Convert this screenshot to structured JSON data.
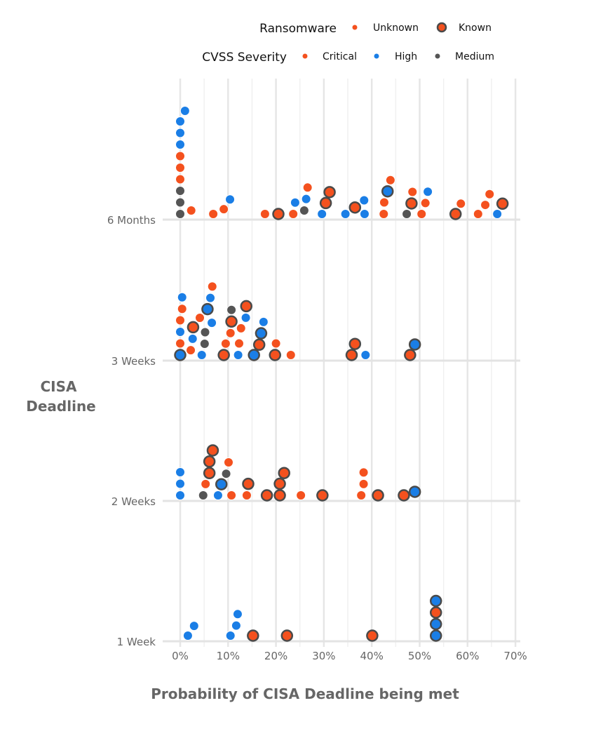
{
  "chart_data": {
    "type": "scatter",
    "subtype": "beeswarm",
    "xlabel": "Probability of CISA Deadline being met",
    "ylabel": "CISA Deadline",
    "xlim": [
      0,
      70
    ],
    "x_ticks": [
      "0%",
      "10%",
      "20%",
      "30%",
      "40%",
      "50%",
      "60%",
      "70%"
    ],
    "categories": [
      "1 Week",
      "2 Weeks",
      "3 Weeks",
      "6 Months"
    ],
    "grid": true,
    "legend": {
      "placement": "top",
      "ransomware": {
        "title": "Ransomware",
        "items": [
          "Unknown",
          "Known"
        ]
      },
      "severity": {
        "title": "CVSS Severity",
        "items": [
          "Critical",
          "High",
          "Medium"
        ]
      }
    },
    "colors": {
      "Critical": "#F4511E",
      "High": "#1A7EE6",
      "Medium": "#555555",
      "known_outline": "#4a4a4a"
    },
    "points": {
      "6 Months": [
        [
          0,
          "Medium",
          0
        ],
        [
          0,
          "Medium",
          0
        ],
        [
          0,
          "Medium",
          0
        ],
        [
          0,
          "Critical",
          0
        ],
        [
          0,
          "Critical",
          0
        ],
        [
          0,
          "Critical",
          0
        ],
        [
          0,
          "High",
          0
        ],
        [
          0,
          "High",
          0
        ],
        [
          0,
          "High",
          0
        ],
        [
          1.0,
          "High",
          0
        ],
        [
          2.3,
          "Critical",
          0
        ],
        [
          6.9,
          "Critical",
          0
        ],
        [
          9.1,
          "Critical",
          0
        ],
        [
          10.4,
          "High",
          0
        ],
        [
          17.7,
          "Critical",
          0
        ],
        [
          20.5,
          "Critical",
          1
        ],
        [
          23.6,
          "Critical",
          0
        ],
        [
          24.0,
          "High",
          0
        ],
        [
          25.9,
          "Medium",
          0
        ],
        [
          26.3,
          "High",
          0
        ],
        [
          26.6,
          "Critical",
          0
        ],
        [
          29.6,
          "High",
          0
        ],
        [
          30.4,
          "Critical",
          1
        ],
        [
          31.2,
          "Critical",
          1
        ],
        [
          34.5,
          "High",
          0
        ],
        [
          36.5,
          "Critical",
          1
        ],
        [
          38.4,
          "High",
          0
        ],
        [
          38.5,
          "High",
          0
        ],
        [
          42.5,
          "Critical",
          0
        ],
        [
          42.6,
          "Critical",
          0
        ],
        [
          43.3,
          "High",
          1
        ],
        [
          43.9,
          "Critical",
          0
        ],
        [
          47.3,
          "Medium",
          0
        ],
        [
          48.3,
          "Critical",
          1
        ],
        [
          48.5,
          "Critical",
          0
        ],
        [
          50.4,
          "Critical",
          0
        ],
        [
          51.2,
          "Critical",
          0
        ],
        [
          51.7,
          "High",
          0
        ],
        [
          57.5,
          "Critical",
          1
        ],
        [
          58.6,
          "Critical",
          0
        ],
        [
          62.2,
          "Critical",
          0
        ],
        [
          63.7,
          "Critical",
          0
        ],
        [
          64.6,
          "Critical",
          0
        ],
        [
          66.2,
          "High",
          0
        ],
        [
          67.3,
          "Critical",
          1
        ]
      ],
      "3 Weeks": [
        [
          0,
          "High",
          1
        ],
        [
          0,
          "Critical",
          0
        ],
        [
          0,
          "High",
          0
        ],
        [
          0,
          "Critical",
          0
        ],
        [
          0.4,
          "Critical",
          0
        ],
        [
          0.4,
          "High",
          0
        ],
        [
          2.2,
          "Critical",
          0
        ],
        [
          2.6,
          "High",
          0
        ],
        [
          2.7,
          "Critical",
          1
        ],
        [
          4.1,
          "Critical",
          0
        ],
        [
          4.5,
          "High",
          0
        ],
        [
          5.1,
          "Medium",
          0
        ],
        [
          5.2,
          "Medium",
          0
        ],
        [
          5.7,
          "High",
          1
        ],
        [
          6.3,
          "High",
          0
        ],
        [
          6.6,
          "High",
          0
        ],
        [
          6.7,
          "Critical",
          0
        ],
        [
          9.1,
          "Critical",
          1
        ],
        [
          9.5,
          "Critical",
          0
        ],
        [
          10.5,
          "Critical",
          0
        ],
        [
          10.7,
          "Critical",
          1
        ],
        [
          10.7,
          "Medium",
          0
        ],
        [
          12.1,
          "High",
          0
        ],
        [
          12.3,
          "Critical",
          0
        ],
        [
          12.7,
          "Critical",
          0
        ],
        [
          13.7,
          "High",
          0
        ],
        [
          13.8,
          "Critical",
          1
        ],
        [
          15.4,
          "High",
          1
        ],
        [
          16.5,
          "Critical",
          1
        ],
        [
          16.9,
          "High",
          1
        ],
        [
          17.4,
          "High",
          0
        ],
        [
          19.8,
          "Critical",
          1
        ],
        [
          20.0,
          "Critical",
          0
        ],
        [
          23.1,
          "Critical",
          0
        ],
        [
          35.8,
          "Critical",
          1
        ],
        [
          36.5,
          "Critical",
          1
        ],
        [
          38.7,
          "High",
          0
        ],
        [
          48.0,
          "Critical",
          1
        ],
        [
          49.0,
          "High",
          1
        ]
      ],
      "2 Weeks": [
        [
          0,
          "High",
          0
        ],
        [
          0,
          "High",
          0
        ],
        [
          0,
          "High",
          0
        ],
        [
          4.8,
          "Medium",
          0
        ],
        [
          5.3,
          "Critical",
          0
        ],
        [
          6.1,
          "Critical",
          1
        ],
        [
          6.1,
          "Critical",
          1
        ],
        [
          6.8,
          "Critical",
          1
        ],
        [
          7.9,
          "High",
          0
        ],
        [
          8.6,
          "High",
          1
        ],
        [
          9.6,
          "Medium",
          0
        ],
        [
          10.1,
          "Critical",
          0
        ],
        [
          10.7,
          "Critical",
          0
        ],
        [
          13.9,
          "Critical",
          0
        ],
        [
          14.2,
          "Critical",
          1
        ],
        [
          18.1,
          "Critical",
          1
        ],
        [
          20.8,
          "Critical",
          1
        ],
        [
          20.8,
          "Critical",
          1
        ],
        [
          21.7,
          "Critical",
          1
        ],
        [
          25.2,
          "Critical",
          0
        ],
        [
          29.7,
          "Critical",
          1
        ],
        [
          37.8,
          "Critical",
          0
        ],
        [
          38.3,
          "Critical",
          0
        ],
        [
          38.3,
          "Critical",
          0
        ],
        [
          41.3,
          "Critical",
          1
        ],
        [
          46.7,
          "Critical",
          1
        ],
        [
          49.0,
          "High",
          1
        ]
      ],
      "1 Week": [
        [
          1.6,
          "High",
          0
        ],
        [
          2.9,
          "High",
          0
        ],
        [
          10.5,
          "High",
          0
        ],
        [
          11.7,
          "High",
          0
        ],
        [
          12.0,
          "High",
          0
        ],
        [
          15.2,
          "Critical",
          1
        ],
        [
          22.3,
          "Critical",
          1
        ],
        [
          40.1,
          "Critical",
          1
        ],
        [
          53.4,
          "High",
          1
        ],
        [
          53.4,
          "High",
          1
        ],
        [
          53.4,
          "Critical",
          1
        ],
        [
          53.4,
          "High",
          1
        ]
      ]
    }
  }
}
